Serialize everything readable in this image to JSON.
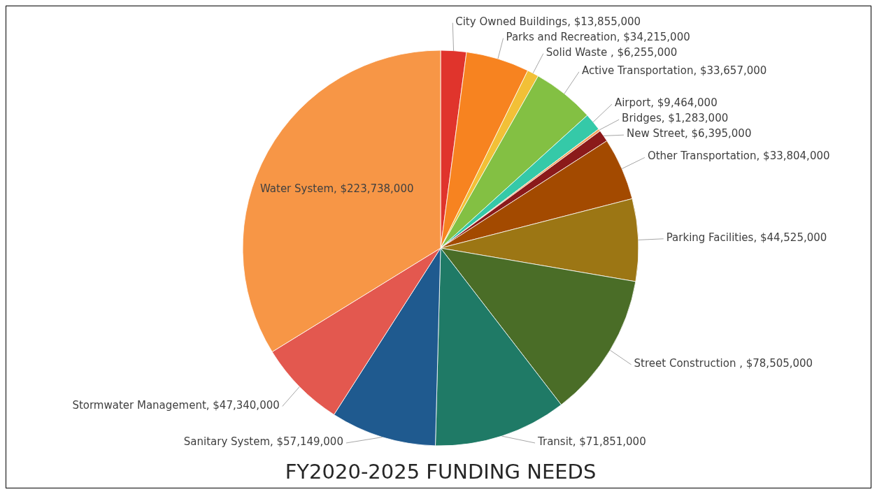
{
  "chart_data": {
    "type": "pie",
    "title": "FY2020-2025 FUNDING NEEDS",
    "categories": [
      "City Owned Buildings",
      "Parks and Recreation",
      "Solid Waste ",
      "Active Transportation",
      "Airport",
      "Bridges",
      "New Street",
      "Other Transportation",
      "Parking Facilities",
      "Street Construction ",
      "Transit",
      "Sanitary System",
      "Stormwater Management",
      "Water System"
    ],
    "values": [
      13855000,
      34215000,
      6255000,
      33657000,
      9464000,
      1283000,
      6395000,
      33804000,
      44525000,
      78505000,
      71851000,
      57149000,
      47340000,
      223738000
    ],
    "value_labels": [
      "$13,855,000",
      "$34,215,000",
      "$6,255,000",
      "$33,657,000",
      "$9,464,000",
      "$1,283,000",
      "$6,395,000",
      "$33,804,000",
      "$44,525,000",
      "$78,505,000",
      "$71,851,000",
      "$57,149,000",
      "$47,340,000",
      "$223,738,000"
    ],
    "colors": [
      "#e0342c",
      "#f78320",
      "#f2c037",
      "#83c043",
      "#35c9a8",
      "#f4a460",
      "#8b1a1a",
      "#a34a00",
      "#9c7614",
      "#4a6d27",
      "#1f7a66",
      "#1f5a8f",
      "#e3584f",
      "#f79646"
    ]
  }
}
